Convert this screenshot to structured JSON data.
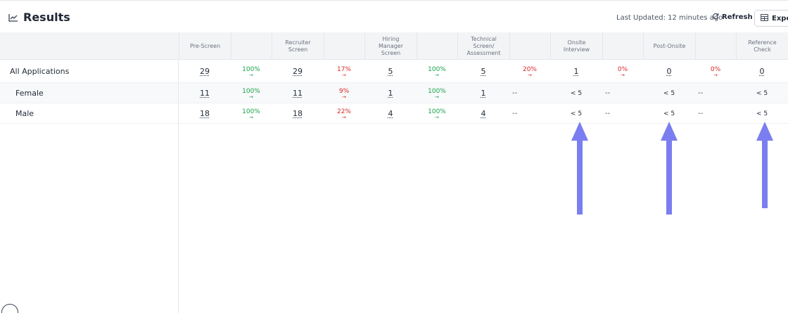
{
  "header": {
    "title": "Results",
    "last_updated": "Last Updated: 12 minutes ago",
    "refresh_label": "Refresh",
    "export_label": "Export"
  },
  "table": {
    "columns": [
      {
        "label": "Pre-Screen"
      },
      {
        "label": ""
      },
      {
        "label": "Recruiter Screen"
      },
      {
        "label": ""
      },
      {
        "label": "Hiring Manager Screen"
      },
      {
        "label": ""
      },
      {
        "label": "Technical Screen/ Assessment"
      },
      {
        "label": ""
      },
      {
        "label": "Onsite Interview"
      },
      {
        "label": ""
      },
      {
        "label": "Post-Onsite"
      },
      {
        "label": ""
      },
      {
        "label": "Reference Check"
      }
    ],
    "rows": [
      {
        "label": "All Applications",
        "cells": [
          {
            "text": "29",
            "kind": "num"
          },
          {
            "text": "100%",
            "kind": "pct",
            "color": "green"
          },
          {
            "text": "29",
            "kind": "num"
          },
          {
            "text": "17%",
            "kind": "pct",
            "color": "red"
          },
          {
            "text": "5",
            "kind": "num"
          },
          {
            "text": "100%",
            "kind": "pct",
            "color": "green"
          },
          {
            "text": "5",
            "kind": "num"
          },
          {
            "text": "20%",
            "kind": "pct",
            "color": "red"
          },
          {
            "text": "1",
            "kind": "num"
          },
          {
            "text": "0%",
            "kind": "pct",
            "color": "red"
          },
          {
            "text": "0",
            "kind": "num"
          },
          {
            "text": "0%",
            "kind": "pct",
            "color": "red"
          },
          {
            "text": "0",
            "kind": "num"
          }
        ]
      },
      {
        "label": "Female",
        "cells": [
          {
            "text": "11",
            "kind": "num"
          },
          {
            "text": "100%",
            "kind": "pct",
            "color": "green"
          },
          {
            "text": "11",
            "kind": "num"
          },
          {
            "text": "9%",
            "kind": "pct",
            "color": "red"
          },
          {
            "text": "1",
            "kind": "num"
          },
          {
            "text": "100%",
            "kind": "pct",
            "color": "green"
          },
          {
            "text": "1",
            "kind": "num"
          },
          {
            "text": "--",
            "kind": "dash"
          },
          {
            "text": "< 5",
            "kind": "plain"
          },
          {
            "text": "--",
            "kind": "dash"
          },
          {
            "text": "< 5",
            "kind": "plain"
          },
          {
            "text": "--",
            "kind": "dash"
          },
          {
            "text": "< 5",
            "kind": "plain"
          }
        ]
      },
      {
        "label": "Male",
        "cells": [
          {
            "text": "18",
            "kind": "num"
          },
          {
            "text": "100%",
            "kind": "pct",
            "color": "green"
          },
          {
            "text": "18",
            "kind": "num"
          },
          {
            "text": "22%",
            "kind": "pct",
            "color": "red"
          },
          {
            "text": "4",
            "kind": "num"
          },
          {
            "text": "100%",
            "kind": "pct",
            "color": "green"
          },
          {
            "text": "4",
            "kind": "num"
          },
          {
            "text": "--",
            "kind": "dash"
          },
          {
            "text": "< 5",
            "kind": "plain"
          },
          {
            "text": "--",
            "kind": "dash"
          },
          {
            "text": "< 5",
            "kind": "plain"
          },
          {
            "text": "--",
            "kind": "dash"
          },
          {
            "text": "< 5",
            "kind": "plain"
          }
        ]
      }
    ]
  },
  "colors": {
    "positive": "#16a34a",
    "negative": "#dc2626",
    "annotation_arrow": "#7b7ef0"
  },
  "icons": {
    "title_icon": "line-chart-icon",
    "refresh_icon": "refresh-icon",
    "export_icon": "table-icon",
    "conversion_arrow": "arrow-right-icon"
  }
}
